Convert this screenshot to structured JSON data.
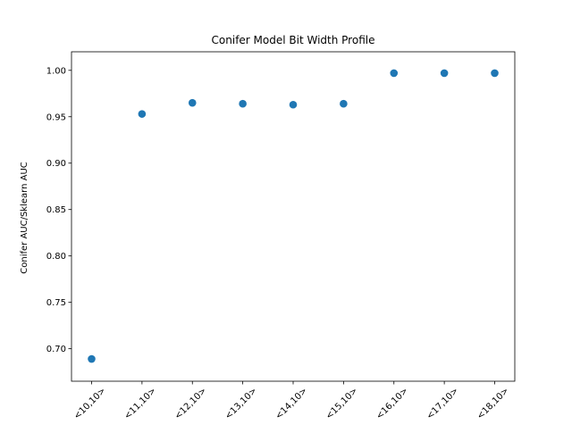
{
  "chart_data": {
    "type": "scatter",
    "title": "Conifer Model Bit Width Profile",
    "xlabel": "",
    "ylabel": "Conifer AUC/Sklearn AUC",
    "categories": [
      "<10,10>",
      "<11,10>",
      "<12,10>",
      "<13,10>",
      "<14,10>",
      "<15,10>",
      "<16,10>",
      "<17,10>",
      "<18,10>"
    ],
    "series": [
      {
        "values": [
          0.689,
          0.953,
          0.965,
          0.964,
          0.963,
          0.964,
          0.997,
          0.997,
          0.997
        ]
      }
    ],
    "ylim": [
      0.665,
      1.02
    ],
    "yticks": [
      0.7,
      0.75,
      0.8,
      0.85,
      0.9,
      0.95,
      1.0
    ],
    "ytick_labels": [
      "0.70",
      "0.75",
      "0.80",
      "0.85",
      "0.90",
      "0.95",
      "1.00"
    ],
    "grid": false,
    "marker_color": "#1f77b4"
  }
}
